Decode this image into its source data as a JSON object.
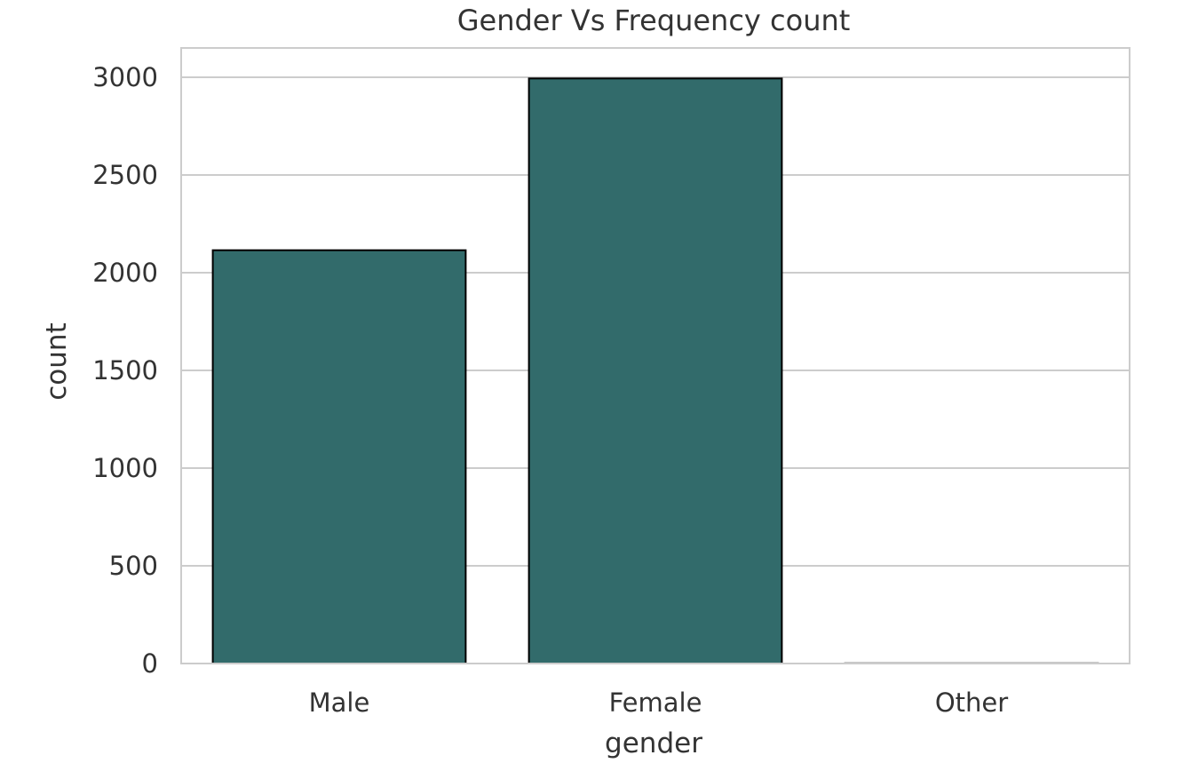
{
  "chart_data": {
    "type": "bar",
    "title": "Gender Vs Frequency count",
    "xlabel": "gender",
    "ylabel": "count",
    "categories": [
      "Male",
      "Female",
      "Other"
    ],
    "values": [
      2115,
      2994,
      1
    ],
    "ylim": [
      0,
      3150
    ],
    "yticks": [
      0,
      500,
      1000,
      1500,
      2000,
      2500,
      3000
    ],
    "ytick_labels": [
      "0",
      "500",
      "1000",
      "1500",
      "2000",
      "2500",
      "3000"
    ],
    "grid": true,
    "legend": "none",
    "colors": {
      "bar_fill": "#326B6B",
      "bar_edge": "#000000",
      "grid": "#CCCCCC",
      "frame": "#CCCCCC",
      "text": "#333333"
    }
  }
}
